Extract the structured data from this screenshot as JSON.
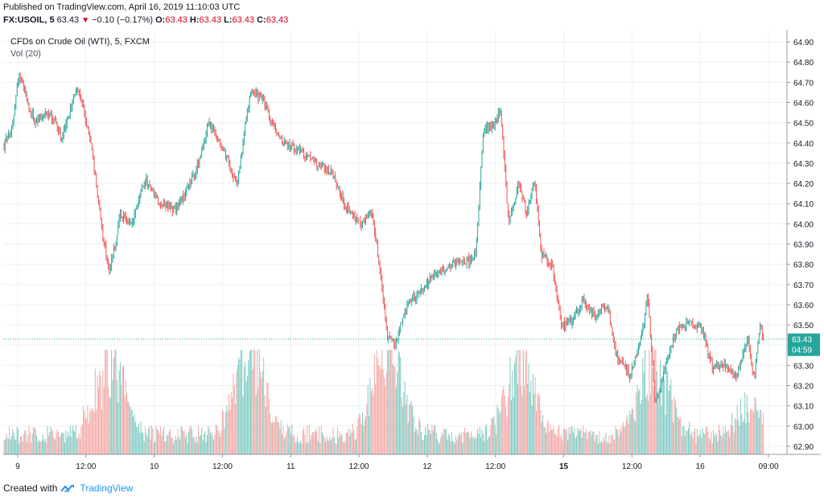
{
  "header": {
    "published": "Published on TradingView.com, April 16, 2019 11:10:03 UTC",
    "symbol": "FX:USOIL, 5",
    "last": "63.43",
    "change": "−0.10 (−0.17%)",
    "o_label": "O:",
    "o_value": "63.43",
    "h_label": "H:",
    "h_value": "63.43",
    "l_label": "L:",
    "l_value": "63.43",
    "c_label": "C:",
    "c_value": "63.43"
  },
  "legend": {
    "title": "CFDs on Crude Oil (WTI), 5, FXCM",
    "volume": "Vol (20)"
  },
  "price_tag": {
    "value": "63.43",
    "countdown": "04:59"
  },
  "footer": {
    "created_with": "Created with",
    "brand": "TradingView"
  },
  "colors": {
    "up": "#26a69a",
    "down": "#ef5350",
    "vol_up": "#80cbc4",
    "vol_down": "#f4a9a6",
    "tag": "#26a69a"
  },
  "chart_data": {
    "type": "candlestick",
    "interval": "5 min",
    "y_ticks": [
      "64.90",
      "64.80",
      "64.70",
      "64.60",
      "64.50",
      "64.40",
      "64.30",
      "64.20",
      "64.10",
      "64.00",
      "63.90",
      "63.80",
      "63.70",
      "63.60",
      "63.50",
      "63.40",
      "63.30",
      "63.20",
      "63.10",
      "63.00",
      "62.90"
    ],
    "ylim": [
      62.86,
      64.96
    ],
    "x_ticks": [
      "9",
      "12:00",
      "10",
      "12:00",
      "11",
      "12:00",
      "12",
      "12:00",
      "15",
      "12:00",
      "16",
      "09:00"
    ],
    "x_ticks_bold": [
      false,
      false,
      false,
      false,
      false,
      false,
      false,
      false,
      true,
      false,
      false,
      false
    ],
    "close_anchors": [
      {
        "x": 0,
        "y": 64.38
      },
      {
        "x": 0.012,
        "y": 64.48
      },
      {
        "x": 0.02,
        "y": 64.75
      },
      {
        "x": 0.04,
        "y": 64.5
      },
      {
        "x": 0.06,
        "y": 64.55
      },
      {
        "x": 0.075,
        "y": 64.42
      },
      {
        "x": 0.095,
        "y": 64.68
      },
      {
        "x": 0.11,
        "y": 64.45
      },
      {
        "x": 0.125,
        "y": 64.0
      },
      {
        "x": 0.135,
        "y": 63.75
      },
      {
        "x": 0.15,
        "y": 64.05
      },
      {
        "x": 0.165,
        "y": 64.0
      },
      {
        "x": 0.18,
        "y": 64.22
      },
      {
        "x": 0.2,
        "y": 64.1
      },
      {
        "x": 0.22,
        "y": 64.07
      },
      {
        "x": 0.245,
        "y": 64.25
      },
      {
        "x": 0.262,
        "y": 64.5
      },
      {
        "x": 0.28,
        "y": 64.38
      },
      {
        "x": 0.298,
        "y": 64.18
      },
      {
        "x": 0.315,
        "y": 64.65
      },
      {
        "x": 0.33,
        "y": 64.62
      },
      {
        "x": 0.345,
        "y": 64.48
      },
      {
        "x": 0.36,
        "y": 64.4
      },
      {
        "x": 0.38,
        "y": 64.35
      },
      {
        "x": 0.4,
        "y": 64.3
      },
      {
        "x": 0.42,
        "y": 64.25
      },
      {
        "x": 0.435,
        "y": 64.1
      },
      {
        "x": 0.455,
        "y": 64.0
      },
      {
        "x": 0.47,
        "y": 64.05
      },
      {
        "x": 0.478,
        "y": 63.85
      },
      {
        "x": 0.49,
        "y": 63.45
      },
      {
        "x": 0.5,
        "y": 63.4
      },
      {
        "x": 0.515,
        "y": 63.6
      },
      {
        "x": 0.53,
        "y": 63.65
      },
      {
        "x": 0.55,
        "y": 63.75
      },
      {
        "x": 0.575,
        "y": 63.8
      },
      {
        "x": 0.595,
        "y": 63.82
      },
      {
        "x": 0.603,
        "y": 63.85
      },
      {
        "x": 0.612,
        "y": 64.45
      },
      {
        "x": 0.625,
        "y": 64.5
      },
      {
        "x": 0.635,
        "y": 64.55
      },
      {
        "x": 0.645,
        "y": 64.0
      },
      {
        "x": 0.658,
        "y": 64.2
      },
      {
        "x": 0.668,
        "y": 64.05
      },
      {
        "x": 0.678,
        "y": 64.22
      },
      {
        "x": 0.686,
        "y": 63.85
      },
      {
        "x": 0.7,
        "y": 63.8
      },
      {
        "x": 0.712,
        "y": 63.5
      },
      {
        "x": 0.725,
        "y": 63.52
      },
      {
        "x": 0.74,
        "y": 63.62
      },
      {
        "x": 0.755,
        "y": 63.55
      },
      {
        "x": 0.77,
        "y": 63.6
      },
      {
        "x": 0.783,
        "y": 63.35
      },
      {
        "x": 0.8,
        "y": 63.25
      },
      {
        "x": 0.815,
        "y": 63.45
      },
      {
        "x": 0.822,
        "y": 63.65
      },
      {
        "x": 0.832,
        "y": 63.1
      },
      {
        "x": 0.845,
        "y": 63.3
      },
      {
        "x": 0.86,
        "y": 63.48
      },
      {
        "x": 0.875,
        "y": 63.52
      },
      {
        "x": 0.892,
        "y": 63.48
      },
      {
        "x": 0.905,
        "y": 63.28
      },
      {
        "x": 0.92,
        "y": 63.3
      },
      {
        "x": 0.935,
        "y": 63.25
      },
      {
        "x": 0.95,
        "y": 63.45
      },
      {
        "x": 0.958,
        "y": 63.22
      },
      {
        "x": 0.966,
        "y": 63.52
      },
      {
        "x": 0.97,
        "y": 63.43
      }
    ],
    "volume_bursts": [
      {
        "x": 0.135,
        "level": 0.85
      },
      {
        "x": 0.315,
        "level": 1.0
      },
      {
        "x": 0.49,
        "level": 0.95
      },
      {
        "x": 0.66,
        "level": 0.8
      },
      {
        "x": 0.83,
        "level": 0.9
      },
      {
        "x": 0.955,
        "level": 0.3
      }
    ],
    "last_price": 63.43,
    "grid": true
  }
}
